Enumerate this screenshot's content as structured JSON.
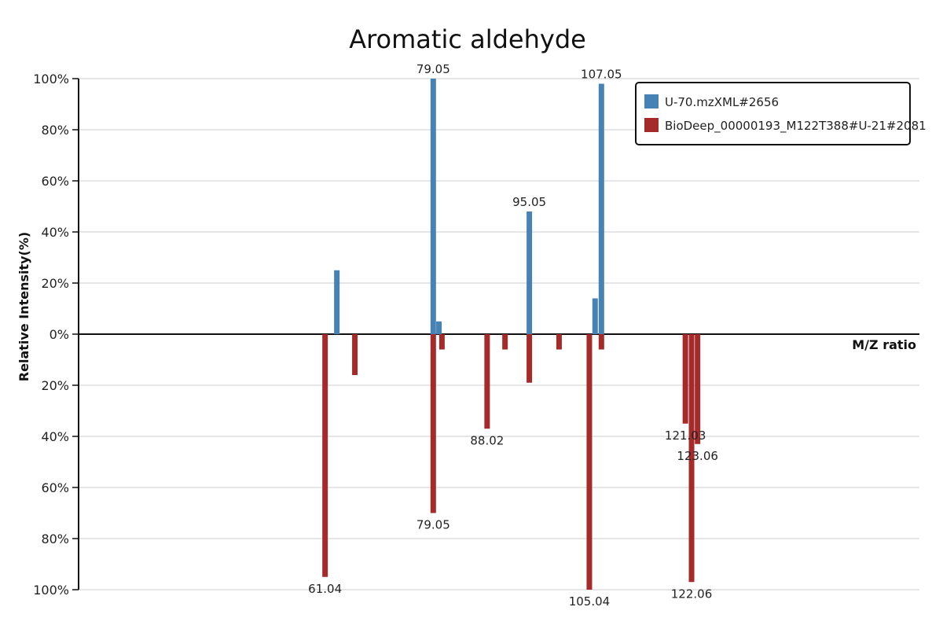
{
  "chart_data": {
    "type": "bar",
    "title": "Aromatic aldehyde",
    "xlabel": "M/Z ratio",
    "ylabel": "Relative Intensity(%)",
    "ylim": [
      -100,
      100
    ],
    "yticks": [
      {
        "value": 100,
        "label": "100%"
      },
      {
        "value": 80,
        "label": "80%"
      },
      {
        "value": 60,
        "label": "60%"
      },
      {
        "value": 40,
        "label": "40%"
      },
      {
        "value": 20,
        "label": "20%"
      },
      {
        "value": 0,
        "label": "0%"
      },
      {
        "value": -20,
        "label": "20%"
      },
      {
        "value": -40,
        "label": "40%"
      },
      {
        "value": -60,
        "label": "60%"
      },
      {
        "value": -80,
        "label": "80%"
      },
      {
        "value": -100,
        "label": "100%"
      }
    ],
    "grid": true,
    "legend_position": "top-right",
    "series": [
      {
        "name": "U-70.mzXML#2656",
        "color": "#4682b4",
        "direction": "up",
        "peaks": [
          {
            "mz": 63.0,
            "intensity": 25,
            "label": ""
          },
          {
            "mz": 79.05,
            "intensity": 100,
            "label": "79.05"
          },
          {
            "mz": 80.0,
            "intensity": 5,
            "label": ""
          },
          {
            "mz": 95.05,
            "intensity": 48,
            "label": "95.05"
          },
          {
            "mz": 106.0,
            "intensity": 14,
            "label": ""
          },
          {
            "mz": 107.05,
            "intensity": 98,
            "label": "107.05"
          }
        ]
      },
      {
        "name": "BioDeep_00000193_M122T388#U-21#2081",
        "color": "#a52a2a",
        "direction": "down",
        "peaks": [
          {
            "mz": 66.0,
            "intensity": 16,
            "label": ""
          },
          {
            "mz": 61.04,
            "intensity": 95,
            "label": "61.04"
          },
          {
            "mz": 79.05,
            "intensity": 70,
            "label": "79.05"
          },
          {
            "mz": 80.5,
            "intensity": 6,
            "label": ""
          },
          {
            "mz": 88.02,
            "intensity": 37,
            "label": "88.02"
          },
          {
            "mz": 91.0,
            "intensity": 6,
            "label": ""
          },
          {
            "mz": 95.05,
            "intensity": 19,
            "label": ""
          },
          {
            "mz": 100.0,
            "intensity": 6,
            "label": ""
          },
          {
            "mz": 105.04,
            "intensity": 100,
            "label": "105.04"
          },
          {
            "mz": 107.05,
            "intensity": 6,
            "label": ""
          },
          {
            "mz": 121.03,
            "intensity": 35,
            "label": "121.03"
          },
          {
            "mz": 122.06,
            "intensity": 97,
            "label": "122.06"
          },
          {
            "mz": 123.06,
            "intensity": 43,
            "label": "123.06"
          }
        ]
      }
    ]
  }
}
